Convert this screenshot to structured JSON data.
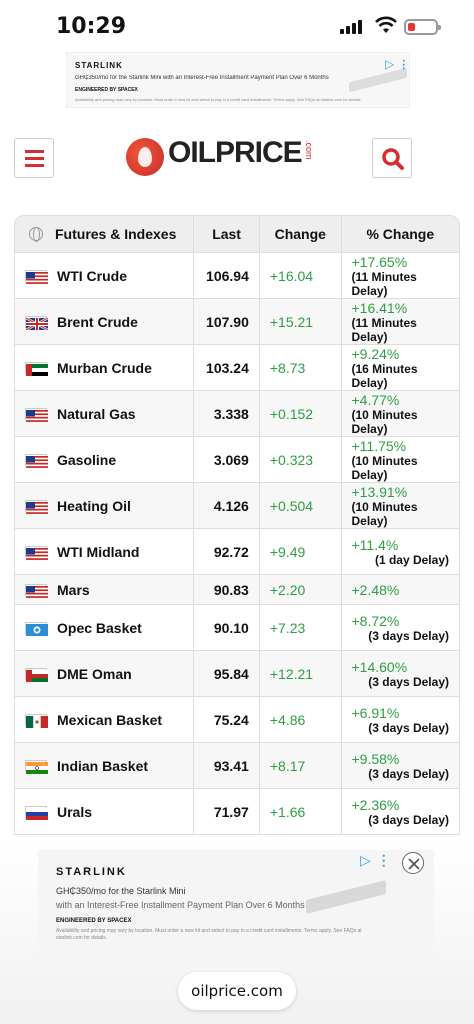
{
  "status_bar": {
    "time": "10:29"
  },
  "ad_top": {
    "brand": "STARLINK",
    "line": "GH₵350/mo for the Starlink Mini with an Interest-Free Installment Payment Plan Over 6 Months",
    "engineered": "ENGINEERED BY SPACEX",
    "fine": "Availability and pricing may vary by location. Must order a new kit and select to pay in a credit card installments. Terms apply. See FAQs at starlink.com for details."
  },
  "header": {
    "logo_oil": "OIL",
    "logo_price": "PRICE",
    "logo_com": ".com"
  },
  "table": {
    "headers": [
      "Futures & Indexes",
      "Last",
      "Change",
      "% Change"
    ],
    "rows": [
      {
        "name": "WTI Crude",
        "flag": "us",
        "last": "106.94",
        "change": "+16.04",
        "pct": "+17.65%",
        "delay": "(11 Minutes Delay)"
      },
      {
        "name": "Brent Crude",
        "flag": "uk",
        "last": "107.90",
        "change": "+15.21",
        "pct": "+16.41%",
        "delay": "(11 Minutes Delay)"
      },
      {
        "name": "Murban Crude",
        "flag": "ae",
        "last": "103.24",
        "change": "+8.73",
        "pct": "+9.24%",
        "delay": "(16 Minutes Delay)"
      },
      {
        "name": "Natural Gas",
        "flag": "us",
        "last": "3.338",
        "change": "+0.152",
        "pct": "+4.77%",
        "delay": "(10 Minutes Delay)"
      },
      {
        "name": "Gasoline",
        "flag": "us",
        "last": "3.069",
        "change": "+0.323",
        "pct": "+11.75%",
        "delay": "(10 Minutes Delay)"
      },
      {
        "name": "Heating Oil",
        "flag": "us",
        "last": "4.126",
        "change": "+0.504",
        "pct": "+13.91%",
        "delay": "(10 Minutes Delay)"
      },
      {
        "name": "WTI Midland",
        "flag": "us",
        "last": "92.72",
        "change": "+9.49",
        "pct": "+11.4%",
        "delay": "(1 day Delay)"
      },
      {
        "name": "Mars",
        "flag": "us",
        "last": "90.83",
        "change": "+2.20",
        "pct": "+2.48%",
        "delay": ""
      },
      {
        "name": "Opec Basket",
        "flag": "opec",
        "last": "90.10",
        "change": "+7.23",
        "pct": "+8.72%",
        "delay": "(3 days Delay)"
      },
      {
        "name": "DME Oman",
        "flag": "om",
        "last": "95.84",
        "change": "+12.21",
        "pct": "+14.60%",
        "delay": "(3 days Delay)"
      },
      {
        "name": "Mexican Basket",
        "flag": "mx",
        "last": "75.24",
        "change": "+4.86",
        "pct": "+6.91%",
        "delay": "(3 days Delay)"
      },
      {
        "name": "Indian Basket",
        "flag": "in",
        "last": "93.41",
        "change": "+8.17",
        "pct": "+9.58%",
        "delay": "(3 days Delay)"
      },
      {
        "name": "Urals",
        "flag": "ru",
        "last": "71.97",
        "change": "+1.66",
        "pct": "+2.36%",
        "delay": "(3 days Delay)"
      }
    ]
  },
  "ad_bottom": {
    "brand": "STARLINK",
    "l1": "GH₵350/mo for the Starlink Mini",
    "l2": "with an Interest-Free Installment Payment Plan Over 6 Months",
    "engineered": "ENGINEERED BY SPACEX",
    "fine": "Availability and pricing may vary by location. Must order a new kit and select to pay in a credit card installments. Terms apply. See FAQs at starlink.com for details."
  },
  "browser": {
    "url": "oilprice.com"
  },
  "colors": {
    "accent": "#d32f2f",
    "positive": "#2e9e44"
  }
}
